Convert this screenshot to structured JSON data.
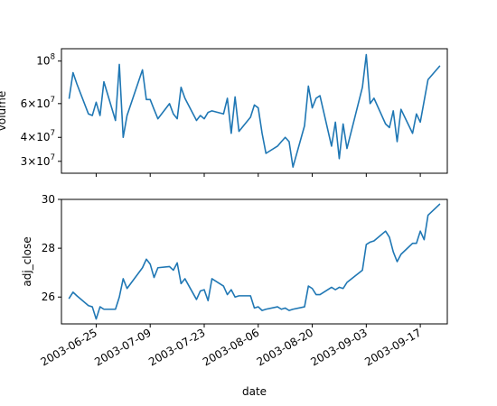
{
  "chart_data": [
    {
      "type": "line",
      "ylabel": "volume",
      "yscale": "log",
      "ylim": [
        26000000,
        116000000
      ],
      "xlim": [
        "2003-06-16",
        "2003-09-24"
      ],
      "grid": false,
      "yticks": [
        {
          "value": 30000000,
          "mantissa": "3",
          "exp": "7"
        },
        {
          "value": 40000000,
          "mantissa": "4",
          "exp": "7"
        },
        {
          "value": 60000000,
          "mantissa": "6",
          "exp": "7"
        },
        {
          "value": 100000000,
          "mantissa": "",
          "exp": "8"
        }
      ],
      "x": [
        "2003-06-18",
        "2003-06-19",
        "2003-06-20",
        "2003-06-23",
        "2003-06-24",
        "2003-06-25",
        "2003-06-26",
        "2003-06-27",
        "2003-06-30",
        "2003-07-01",
        "2003-07-02",
        "2003-07-03",
        "2003-07-07",
        "2003-07-08",
        "2003-07-09",
        "2003-07-10",
        "2003-07-11",
        "2003-07-14",
        "2003-07-15",
        "2003-07-16",
        "2003-07-17",
        "2003-07-18",
        "2003-07-21",
        "2003-07-22",
        "2003-07-23",
        "2003-07-24",
        "2003-07-25",
        "2003-07-28",
        "2003-07-29",
        "2003-07-30",
        "2003-07-31",
        "2003-08-01",
        "2003-08-04",
        "2003-08-05",
        "2003-08-06",
        "2003-08-07",
        "2003-08-08",
        "2003-08-11",
        "2003-08-12",
        "2003-08-13",
        "2003-08-14",
        "2003-08-15",
        "2003-08-18",
        "2003-08-19",
        "2003-08-20",
        "2003-08-21",
        "2003-08-22",
        "2003-08-25",
        "2003-08-26",
        "2003-08-27",
        "2003-08-28",
        "2003-08-29",
        "2003-09-02",
        "2003-09-03",
        "2003-09-04",
        "2003-09-05",
        "2003-09-08",
        "2003-09-09",
        "2003-09-10",
        "2003-09-11",
        "2003-09-12",
        "2003-09-15",
        "2003-09-16",
        "2003-09-17",
        "2003-09-18",
        "2003-09-19",
        "2003-09-22"
      ],
      "values": [
        64000000,
        87000000,
        76000000,
        53000000,
        52000000,
        61000000,
        52000000,
        78000000,
        49000000,
        96000000,
        40000000,
        52000000,
        90000000,
        63000000,
        63000000,
        56000000,
        50000000,
        60000000,
        53000000,
        50000000,
        73000000,
        64000000,
        49000000,
        52000000,
        50000000,
        54000000,
        55000000,
        53000000,
        64000000,
        42000000,
        65000000,
        43000000,
        51000000,
        59000000,
        57000000,
        42000000,
        33000000,
        36000000,
        38000000,
        40000000,
        38000000,
        28000000,
        46000000,
        74000000,
        57000000,
        64000000,
        66000000,
        36000000,
        48000000,
        31000000,
        47000000,
        35000000,
        73000000,
        108000000,
        60000000,
        64000000,
        47000000,
        45000000,
        55000000,
        38000000,
        56000000,
        42000000,
        53000000,
        48000000,
        62000000,
        80000000,
        94000000
      ]
    },
    {
      "type": "line",
      "ylabel": "adj_close",
      "xlabel": "date",
      "ylim": [
        24.9,
        30.0
      ],
      "xlim": [
        "2003-06-16",
        "2003-09-24"
      ],
      "grid": false,
      "yticks": [
        26,
        28,
        30
      ],
      "xticks": [
        "2003-06-25",
        "2003-07-09",
        "2003-07-23",
        "2003-08-06",
        "2003-08-20",
        "2003-09-03",
        "2003-09-17"
      ],
      "x": [
        "2003-06-18",
        "2003-06-19",
        "2003-06-20",
        "2003-06-23",
        "2003-06-24",
        "2003-06-25",
        "2003-06-26",
        "2003-06-27",
        "2003-06-30",
        "2003-07-01",
        "2003-07-02",
        "2003-07-03",
        "2003-07-07",
        "2003-07-08",
        "2003-07-09",
        "2003-07-10",
        "2003-07-11",
        "2003-07-14",
        "2003-07-15",
        "2003-07-16",
        "2003-07-17",
        "2003-07-18",
        "2003-07-21",
        "2003-07-22",
        "2003-07-23",
        "2003-07-24",
        "2003-07-25",
        "2003-07-28",
        "2003-07-29",
        "2003-07-30",
        "2003-07-31",
        "2003-08-01",
        "2003-08-04",
        "2003-08-05",
        "2003-08-06",
        "2003-08-07",
        "2003-08-08",
        "2003-08-11",
        "2003-08-12",
        "2003-08-13",
        "2003-08-14",
        "2003-08-15",
        "2003-08-18",
        "2003-08-19",
        "2003-08-20",
        "2003-08-21",
        "2003-08-22",
        "2003-08-25",
        "2003-08-26",
        "2003-08-27",
        "2003-08-28",
        "2003-08-29",
        "2003-09-02",
        "2003-09-03",
        "2003-09-04",
        "2003-09-05",
        "2003-09-08",
        "2003-09-09",
        "2003-09-10",
        "2003-09-11",
        "2003-09-12",
        "2003-09-15",
        "2003-09-16",
        "2003-09-17",
        "2003-09-18",
        "2003-09-19",
        "2003-09-22"
      ],
      "values": [
        25.95,
        26.2,
        26.05,
        25.65,
        25.6,
        25.1,
        25.6,
        25.5,
        25.5,
        26.0,
        26.75,
        26.35,
        27.2,
        27.55,
        27.35,
        26.8,
        27.2,
        27.25,
        27.1,
        27.4,
        26.55,
        26.75,
        25.9,
        26.25,
        26.3,
        25.85,
        26.75,
        26.45,
        26.1,
        26.3,
        26.0,
        26.05,
        26.05,
        25.55,
        25.6,
        25.45,
        25.5,
        25.6,
        25.5,
        25.55,
        25.45,
        25.5,
        25.6,
        26.45,
        26.35,
        26.1,
        26.1,
        26.4,
        26.3,
        26.4,
        26.35,
        26.6,
        27.1,
        28.15,
        28.25,
        28.3,
        28.7,
        28.45,
        27.85,
        27.45,
        27.75,
        28.2,
        28.2,
        28.7,
        28.35,
        29.35,
        29.8
      ]
    }
  ]
}
